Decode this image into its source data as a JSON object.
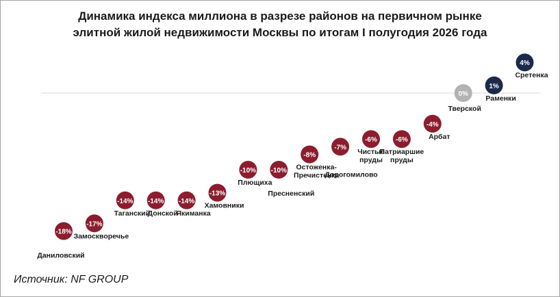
{
  "title_line1": "Динамика индекса миллиона в разрезе районов на первичном рынке",
  "title_line2": "элитной жилой недвижимости Москвы по итогам I полугодия 2026 года",
  "source": "Источник: NF GROUP",
  "colors": {
    "negative": "#8c1d2e",
    "zero": "#b3b3b3",
    "positive": "#1b2a4a",
    "baseline": "#d9d9d9",
    "bubble_text": "#ffffff",
    "label_text": "#1a1a1a"
  },
  "chart_data": {
    "type": "scatter",
    "title": "Динамика индекса миллиона в разрезе районов на первичном рынке элитной жилой недвижимости Москвы по итогам I полугодия 2026 года",
    "xlabel": "",
    "ylabel": "",
    "y_unit": "%",
    "grid": false,
    "baseline": 0,
    "points": [
      {
        "district": [
          "Даниловский"
        ],
        "value": -18,
        "label": "-18%"
      },
      {
        "district": [
          "Замоскворечье"
        ],
        "value": -17,
        "label": "-17%"
      },
      {
        "district": [
          "Таганский"
        ],
        "value": -14,
        "label": "-14%"
      },
      {
        "district": [
          "Донской"
        ],
        "value": -14,
        "label": "-14%"
      },
      {
        "district": [
          "Якиманка"
        ],
        "value": -14,
        "label": "-14%"
      },
      {
        "district": [
          "Хамовники"
        ],
        "value": -13,
        "label": "-13%"
      },
      {
        "district": [
          "Плющиха"
        ],
        "value": -10,
        "label": "-10%"
      },
      {
        "district": [
          "Пресненский"
        ],
        "value": -10,
        "label": "-10%"
      },
      {
        "district": [
          "Остоженка-",
          "Пречистенка"
        ],
        "value": -8,
        "label": "-8%"
      },
      {
        "district": [
          "Дорогомилово"
        ],
        "value": -7,
        "label": "-7%"
      },
      {
        "district": [
          "Чистые",
          "пруды"
        ],
        "value": -6,
        "label": "-6%"
      },
      {
        "district": [
          "Патриаршие",
          "пруды"
        ],
        "value": -6,
        "label": "-6%"
      },
      {
        "district": [
          "Арбат"
        ],
        "value": -4,
        "label": "-4%"
      },
      {
        "district": [
          "Тверской"
        ],
        "value": 0,
        "label": "0%"
      },
      {
        "district": [
          "Раменки"
        ],
        "value": 1,
        "label": "1%"
      },
      {
        "district": [
          "Сретенка"
        ],
        "value": 4,
        "label": "4%"
      }
    ]
  }
}
